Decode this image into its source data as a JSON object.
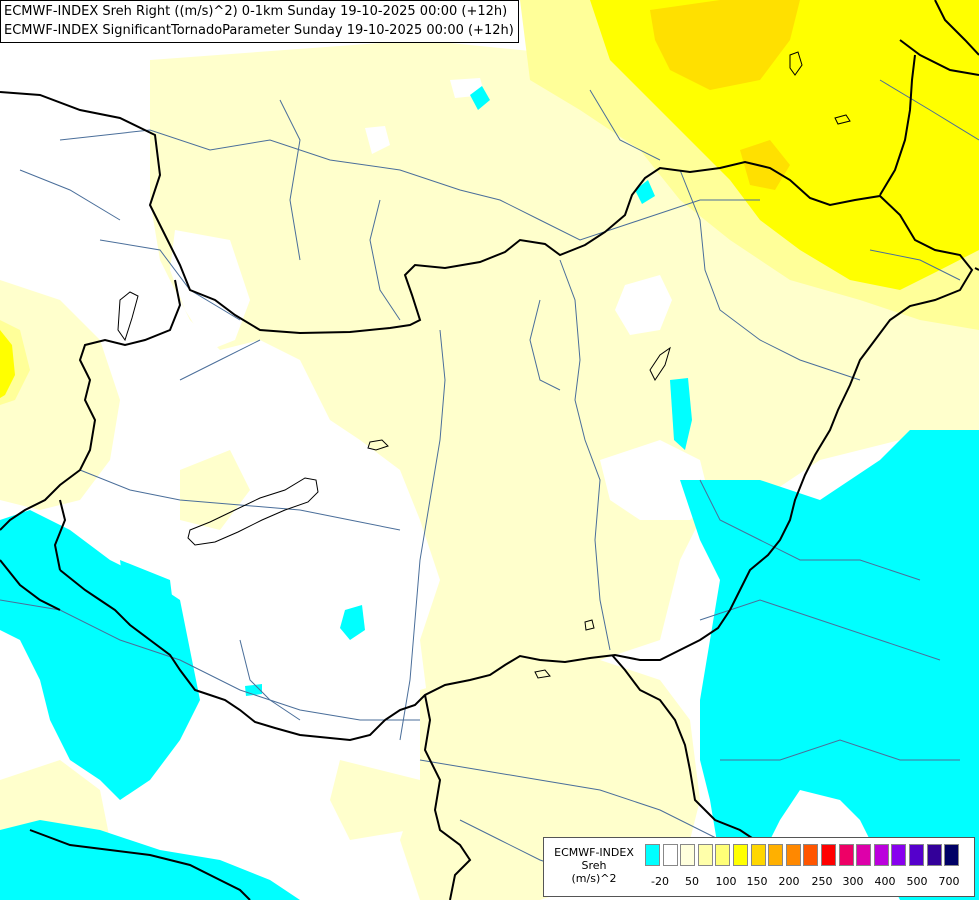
{
  "title": {
    "line1": "ECMWF-INDEX Sreh Right ((m/s)^2) 0-1km Sunday 19-10-2025 00:00 (+12h)",
    "line2": "ECMWF-INDEX SignificantTornadoParameter Sunday 19-10-2025 00:00 (+12h)"
  },
  "legend": {
    "line1": "ECMWF-INDEX",
    "line2": "Sreh",
    "line3": "(m/s)^2",
    "tick_labels": [
      "-20",
      "50",
      "100",
      "150",
      "200",
      "250",
      "300",
      "400",
      "500",
      "700"
    ],
    "colors": [
      "#00ffff",
      "#ffffff",
      "#ffffdd",
      "#ffffaa",
      "#ffff77",
      "#ffff00",
      "#ffd700",
      "#ffb000",
      "#ff8800",
      "#ff5500",
      "#ff0000",
      "#ee0066",
      "#dd00aa",
      "#bb00dd",
      "#8800ee",
      "#5500cc",
      "#330099",
      "#000066"
    ]
  },
  "colors": {
    "neutral": "#ffffff",
    "light_yellow": "#ffffcc",
    "pale_yellow": "#ffff99",
    "yellow": "#ffff00",
    "gold": "#ffe000",
    "cyan": "#00ffff",
    "border": "#000000",
    "river": "#4a6e9a"
  }
}
